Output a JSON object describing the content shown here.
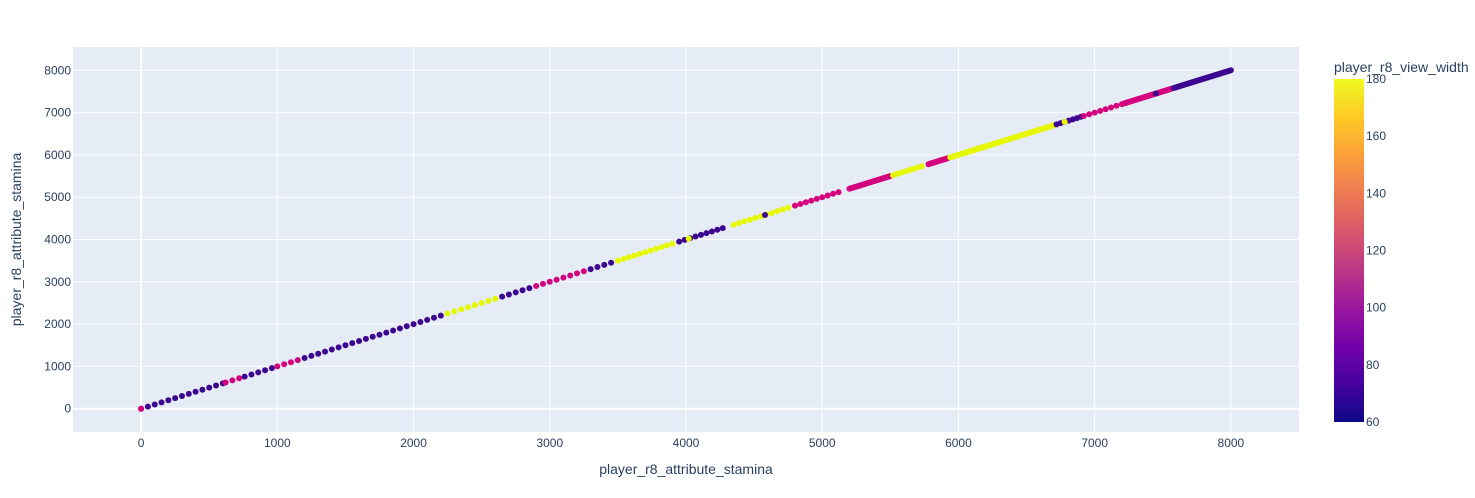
{
  "chart_data": {
    "type": "scatter",
    "xlabel": "player_r8_attribute_stamina",
    "ylabel": "player_r8_attribute_stamina",
    "xlim": [
      -500,
      8500
    ],
    "ylim": [
      -550,
      8550
    ],
    "x_ticks": [
      0,
      1000,
      2000,
      3000,
      4000,
      5000,
      6000,
      7000,
      8000
    ],
    "y_ticks": [
      0,
      1000,
      2000,
      3000,
      4000,
      5000,
      6000,
      7000,
      8000
    ],
    "colorbar": {
      "title": "player_r8_view_width",
      "range": [
        60,
        180
      ],
      "ticks": [
        60,
        80,
        100,
        120,
        140,
        160,
        180
      ],
      "colorscale": [
        "#0d0887",
        "#46039f",
        "#7201a8",
        "#9c179e",
        "#bd3786",
        "#d8576b",
        "#ed7953",
        "#fb9f3a",
        "#fdca26",
        "#f0f921"
      ]
    },
    "colors": {
      "background": "#e5ecf6",
      "grid": "#ffffff",
      "low": "#3d0691",
      "mid": "#d4037d",
      "high": "#e6f800"
    },
    "series": [
      {
        "segments": [
          {
            "x_start": 0,
            "x_end": 600,
            "step": 50,
            "value": 60
          },
          {
            "x_start": 620,
            "x_end": 720,
            "step": 50,
            "value": 120
          },
          {
            "x_start": 760,
            "x_end": 960,
            "step": 50,
            "value": 60
          },
          {
            "x_start": 1000,
            "x_end": 1150,
            "step": 50,
            "value": 120
          },
          {
            "x_start": 1200,
            "x_end": 2200,
            "step": 50,
            "value": 60
          },
          {
            "x_start": 2250,
            "x_end": 2350,
            "step": 50,
            "value": 180
          },
          {
            "x_start": 2400,
            "x_end": 2600,
            "step": 50,
            "value": 180
          },
          {
            "x_start": 2650,
            "x_end": 2850,
            "step": 50,
            "value": 60
          },
          {
            "x_start": 2900,
            "x_end": 3250,
            "step": 50,
            "value": 120
          },
          {
            "x_start": 3300,
            "x_end": 3450,
            "step": 50,
            "value": 60
          },
          {
            "x_start": 3500,
            "x_end": 3900,
            "step": 40,
            "value": 180
          },
          {
            "x_start": 3950,
            "x_end": 4300,
            "step": 40,
            "value": 60
          },
          {
            "x_start": 4350,
            "x_end": 4750,
            "step": 40,
            "value": 180
          },
          {
            "x_start": 4800,
            "x_end": 5150,
            "step": 40,
            "value": 120
          },
          {
            "x_start": 5200,
            "x_end": 5500,
            "step": 10,
            "value": 120
          },
          {
            "x_start": 5520,
            "x_end": 5750,
            "step": 30,
            "value": 180
          },
          {
            "x_start": 5780,
            "x_end": 5920,
            "step": 10,
            "value": 120
          },
          {
            "x_start": 5940,
            "x_end": 6700,
            "step": 10,
            "value": 180
          },
          {
            "x_start": 6720,
            "x_end": 6900,
            "step": 30,
            "value": 60
          },
          {
            "x_start": 6920,
            "x_end": 7200,
            "step": 40,
            "value": 120
          },
          {
            "x_start": 7220,
            "x_end": 7560,
            "step": 10,
            "value": 120
          },
          {
            "x_start": 7580,
            "x_end": 8000,
            "step": 10,
            "value": 60
          }
        ],
        "extra_points": [
          {
            "x": 0,
            "value": 120
          },
          {
            "x": 4580,
            "value": 60
          },
          {
            "x": 4020,
            "value": 180
          },
          {
            "x": 6780,
            "value": 180
          },
          {
            "x": 7450,
            "value": 60
          }
        ]
      }
    ]
  }
}
